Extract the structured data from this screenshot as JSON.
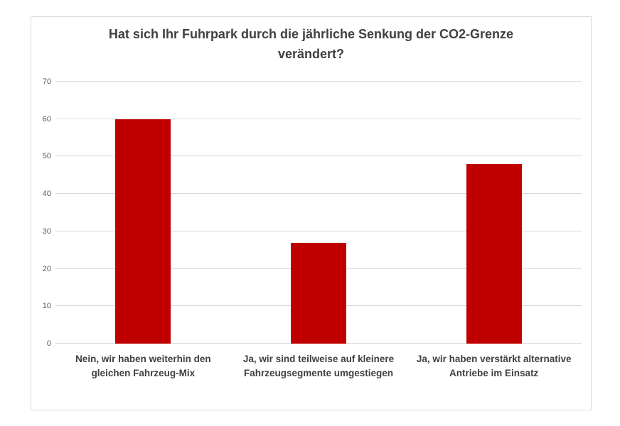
{
  "chart_data": {
    "type": "bar",
    "title": "Hat sich Ihr Fuhrpark durch die jährliche Senkung der CO2-Grenze verändert?",
    "categories": [
      "Nein, wir haben weiterhin den gleichen Fahrzeug-Mix",
      "Ja, wir sind teilweise auf kleinere Fahrzeugsegmente umgestiegen",
      "Ja, wir haben verstärkt alternative Antriebe im Einsatz"
    ],
    "values": [
      60,
      27,
      48
    ],
    "xlabel": "",
    "ylabel": "",
    "ylim": [
      0,
      70
    ],
    "yticks": [
      0,
      10,
      20,
      30,
      40,
      50,
      60,
      70
    ],
    "grid": true,
    "legend_position": "none",
    "colors": {
      "bar": "#C00000",
      "gridline": "#D9D9D9",
      "frame_border": "#D9D9D9",
      "title_text": "#404040",
      "axis_tick_text": "#595959",
      "category_text": "#404040",
      "background": "#FFFFFF"
    }
  }
}
